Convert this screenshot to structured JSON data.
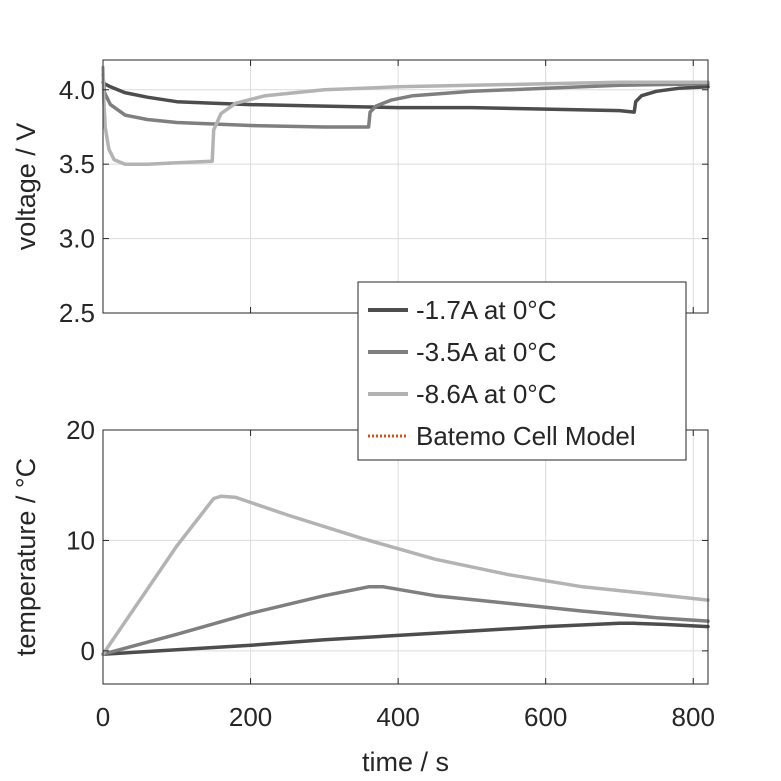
{
  "chart_data": [
    {
      "type": "line",
      "title": "",
      "xlabel": "",
      "ylabel": "voltage / V",
      "xlim": [
        0,
        820
      ],
      "ylim": [
        2.5,
        4.2
      ],
      "yticks": [
        2.5,
        3.0,
        3.5,
        4.0
      ],
      "ytick_labels": [
        "2.5",
        "3.0",
        "3.5",
        "4.0"
      ],
      "xticks": [
        0,
        200,
        400,
        600,
        800
      ],
      "grid": true,
      "series": [
        {
          "name": "-1.7A at 0°C",
          "color": "#4d4d4d",
          "x": [
            0,
            2,
            10,
            30,
            60,
            100,
            150,
            200,
            300,
            400,
            500,
            600,
            700,
            720,
            722,
            730,
            750,
            780,
            820
          ],
          "y": [
            4.05,
            4.04,
            4.02,
            3.98,
            3.95,
            3.92,
            3.91,
            3.9,
            3.89,
            3.88,
            3.88,
            3.87,
            3.86,
            3.85,
            3.92,
            3.96,
            3.99,
            4.01,
            4.02
          ]
        },
        {
          "name": "-3.5A at 0°C",
          "color": "#7f7f7f",
          "x": [
            0,
            2,
            10,
            30,
            60,
            100,
            150,
            200,
            300,
            360,
            362,
            370,
            390,
            420,
            500,
            600,
            700,
            820
          ],
          "y": [
            4.1,
            3.98,
            3.9,
            3.83,
            3.8,
            3.78,
            3.77,
            3.76,
            3.75,
            3.75,
            3.85,
            3.89,
            3.93,
            3.96,
            3.99,
            4.01,
            4.03,
            4.04
          ]
        },
        {
          "name": "-8.6A at 0°C",
          "color": "#b3b3b3",
          "x": [
            0,
            1,
            3,
            8,
            15,
            30,
            60,
            100,
            148,
            150,
            160,
            180,
            220,
            300,
            400,
            500,
            600,
            700,
            820
          ],
          "y": [
            4.15,
            3.95,
            3.75,
            3.6,
            3.53,
            3.5,
            3.5,
            3.51,
            3.52,
            3.73,
            3.84,
            3.91,
            3.96,
            4.0,
            4.02,
            4.03,
            4.04,
            4.05,
            4.05
          ]
        }
      ]
    },
    {
      "type": "line",
      "title": "",
      "xlabel": "time / s",
      "ylabel": "temperature / °C",
      "xlim": [
        0,
        820
      ],
      "ylim": [
        -3,
        20
      ],
      "yticks": [
        0,
        10,
        20
      ],
      "ytick_labels": [
        "0",
        "10",
        "20"
      ],
      "xticks": [
        0,
        200,
        400,
        600,
        800
      ],
      "xtick_labels": [
        "0",
        "200",
        "400",
        "600",
        "800"
      ],
      "grid": true,
      "series": [
        {
          "name": "-1.7A at 0°C",
          "color": "#4d4d4d",
          "x": [
            0,
            100,
            200,
            300,
            400,
            500,
            600,
            700,
            720,
            760,
            820
          ],
          "y": [
            -0.3,
            0.1,
            0.5,
            1.0,
            1.4,
            1.8,
            2.2,
            2.5,
            2.5,
            2.4,
            2.2
          ]
        },
        {
          "name": "-3.5A at 0°C",
          "color": "#7f7f7f",
          "x": [
            0,
            100,
            200,
            300,
            360,
            380,
            450,
            550,
            650,
            750,
            820
          ],
          "y": [
            -0.3,
            1.5,
            3.4,
            5.0,
            5.8,
            5.8,
            5.0,
            4.3,
            3.6,
            3.0,
            2.7
          ]
        },
        {
          "name": "-8.6A at 0°C",
          "color": "#b3b3b3",
          "x": [
            0,
            50,
            100,
            150,
            160,
            180,
            250,
            350,
            450,
            550,
            650,
            750,
            820
          ],
          "y": [
            -0.3,
            4.6,
            9.5,
            13.8,
            14.0,
            13.9,
            12.3,
            10.2,
            8.3,
            6.9,
            5.8,
            5.1,
            4.6
          ]
        },
        {
          "name": "Batemo Cell Model",
          "color": "#d95319",
          "dash": "dotted",
          "x": [],
          "y": []
        }
      ]
    }
  ],
  "legend": {
    "placement": "center-right",
    "entries": [
      {
        "label": "-1.7A at 0°C",
        "color": "#4d4d4d",
        "style": "solid"
      },
      {
        "label": "-3.5A at 0°C",
        "color": "#7f7f7f",
        "style": "solid"
      },
      {
        "label": "-8.6A at 0°C",
        "color": "#b3b3b3",
        "style": "solid"
      },
      {
        "label": "Batemo Cell Model",
        "color": "#d95319",
        "style": "dotted"
      }
    ]
  }
}
